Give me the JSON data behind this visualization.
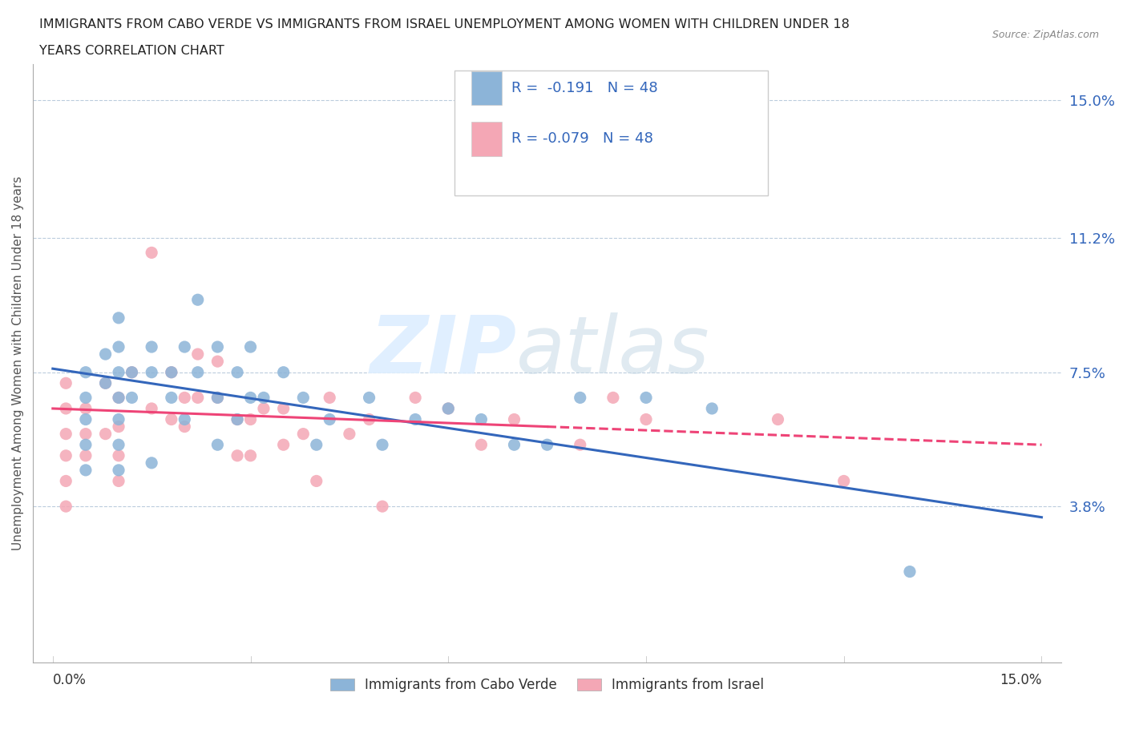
{
  "title_line1": "IMMIGRANTS FROM CABO VERDE VS IMMIGRANTS FROM ISRAEL UNEMPLOYMENT AMONG WOMEN WITH CHILDREN UNDER 18",
  "title_line2": "YEARS CORRELATION CHART",
  "source": "Source: ZipAtlas.com",
  "ylabel": "Unemployment Among Women with Children Under 18 years",
  "xmin": 0.0,
  "xmax": 0.15,
  "ymin": 0.0,
  "ymax": 0.15,
  "yticks": [
    0.038,
    0.075,
    0.112,
    0.15
  ],
  "ytick_labels": [
    "3.8%",
    "7.5%",
    "11.2%",
    "15.0%"
  ],
  "legend_label1": "Immigrants from Cabo Verde",
  "legend_label2": "Immigrants from Israel",
  "r1": -0.191,
  "n1": 48,
  "r2": -0.079,
  "n2": 48,
  "color_cabo": "#8CB4D8",
  "color_israel": "#F4A7B5",
  "color_line_cabo": "#3366BB",
  "color_line_israel": "#EE4477",
  "color_text_blue": "#3366BB",
  "color_text_dark": "#333333",
  "watermark_zip": "ZIP",
  "watermark_atlas": "atlas",
  "cabo_x": [
    0.005,
    0.005,
    0.005,
    0.005,
    0.005,
    0.008,
    0.008,
    0.01,
    0.01,
    0.01,
    0.01,
    0.01,
    0.01,
    0.01,
    0.012,
    0.012,
    0.015,
    0.015,
    0.015,
    0.018,
    0.018,
    0.02,
    0.02,
    0.022,
    0.022,
    0.025,
    0.025,
    0.025,
    0.028,
    0.028,
    0.03,
    0.03,
    0.032,
    0.035,
    0.038,
    0.04,
    0.042,
    0.048,
    0.05,
    0.055,
    0.06,
    0.065,
    0.07,
    0.075,
    0.08,
    0.09,
    0.1,
    0.13
  ],
  "cabo_y": [
    0.075,
    0.068,
    0.062,
    0.055,
    0.048,
    0.08,
    0.072,
    0.09,
    0.082,
    0.075,
    0.068,
    0.062,
    0.055,
    0.048,
    0.075,
    0.068,
    0.082,
    0.075,
    0.05,
    0.075,
    0.068,
    0.082,
    0.062,
    0.095,
    0.075,
    0.082,
    0.068,
    0.055,
    0.075,
    0.062,
    0.082,
    0.068,
    0.068,
    0.075,
    0.068,
    0.055,
    0.062,
    0.068,
    0.055,
    0.062,
    0.065,
    0.062,
    0.055,
    0.055,
    0.068,
    0.068,
    0.065,
    0.02
  ],
  "israel_x": [
    0.002,
    0.002,
    0.002,
    0.002,
    0.002,
    0.002,
    0.005,
    0.005,
    0.005,
    0.008,
    0.008,
    0.01,
    0.01,
    0.01,
    0.01,
    0.012,
    0.015,
    0.015,
    0.018,
    0.018,
    0.02,
    0.02,
    0.022,
    0.022,
    0.025,
    0.025,
    0.028,
    0.028,
    0.03,
    0.03,
    0.032,
    0.035,
    0.035,
    0.038,
    0.04,
    0.042,
    0.045,
    0.048,
    0.05,
    0.055,
    0.06,
    0.065,
    0.07,
    0.08,
    0.085,
    0.09,
    0.11,
    0.12
  ],
  "israel_y": [
    0.072,
    0.065,
    0.058,
    0.052,
    0.045,
    0.038,
    0.065,
    0.058,
    0.052,
    0.072,
    0.058,
    0.068,
    0.06,
    0.052,
    0.045,
    0.075,
    0.108,
    0.065,
    0.062,
    0.075,
    0.068,
    0.06,
    0.08,
    0.068,
    0.078,
    0.068,
    0.062,
    0.052,
    0.062,
    0.052,
    0.065,
    0.065,
    0.055,
    0.058,
    0.045,
    0.068,
    0.058,
    0.062,
    0.038,
    0.068,
    0.065,
    0.055,
    0.062,
    0.055,
    0.068,
    0.062,
    0.062,
    0.045
  ]
}
